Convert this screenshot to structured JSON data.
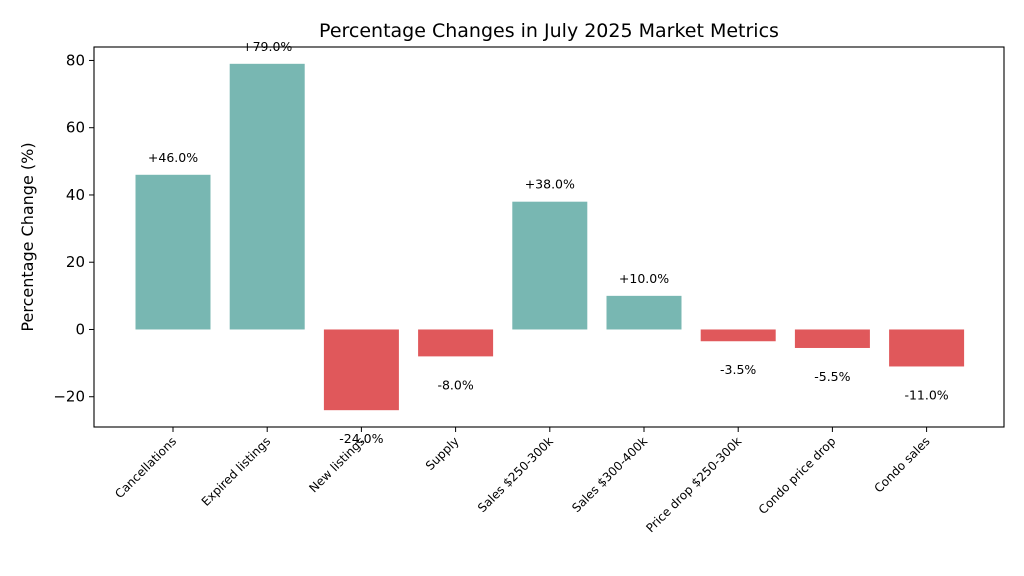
{
  "chart_data": {
    "type": "bar",
    "title": "Percentage Changes in July 2025 Market Metrics",
    "xlabel": "",
    "ylabel": "Percentage Change (%)",
    "ylim": [
      -29,
      84
    ],
    "yticks": [
      -20,
      0,
      20,
      40,
      60,
      80
    ],
    "ytick_labels": [
      "−20",
      "0",
      "20",
      "40",
      "60",
      "80"
    ],
    "categories": [
      "Cancellations",
      "Expired listings",
      "New listings",
      "Supply",
      "Sales $250-300k",
      "Sales $300-400k",
      "Price drop $250-300k",
      "Condo price drop",
      "Condo sales"
    ],
    "values": [
      46.0,
      79.0,
      -24.0,
      -8.0,
      38.0,
      10.0,
      -3.5,
      -5.5,
      -11.0
    ],
    "value_labels": [
      "+46.0%",
      "+79.0%",
      "-24.0%",
      "-8.0%",
      "+38.0%",
      "+10.0%",
      "-3.5%",
      "-5.5%",
      "-11.0%"
    ],
    "grid": false,
    "legend": "none",
    "colors": {
      "positive": "#78b7b2",
      "negative": "#e0585b"
    }
  }
}
